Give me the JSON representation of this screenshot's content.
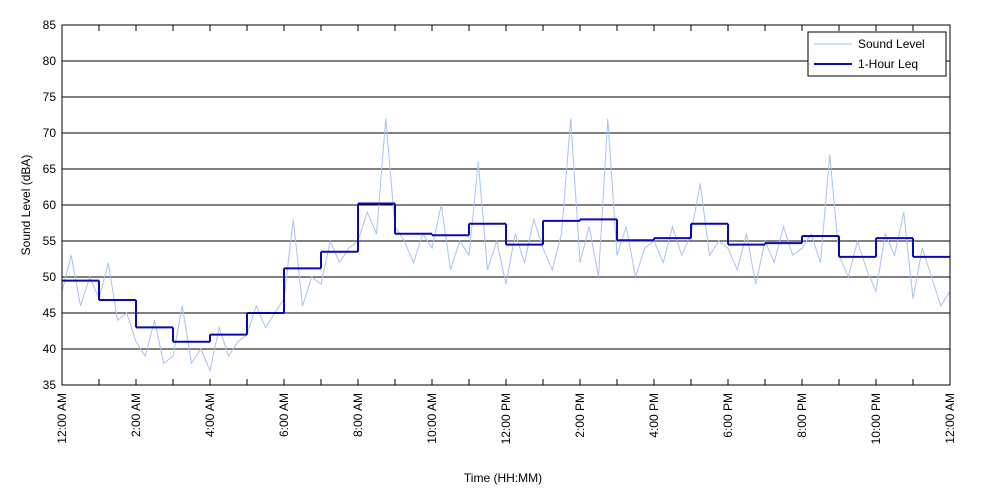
{
  "chart_data": {
    "type": "line",
    "xlabel": "Time (HH:MM)",
    "ylabel": "Sound Level (dBA)",
    "xlim": [
      0,
      24
    ],
    "xticks": [
      {
        "value": 0,
        "label": "12:00 AM"
      },
      {
        "value": 2,
        "label": "2:00 AM"
      },
      {
        "value": 4,
        "label": "4:00 AM"
      },
      {
        "value": 6,
        "label": "6:00 AM"
      },
      {
        "value": 8,
        "label": "8:00 AM"
      },
      {
        "value": 10,
        "label": "10:00 AM"
      },
      {
        "value": 12,
        "label": "12:00 PM"
      },
      {
        "value": 14,
        "label": "2:00 PM"
      },
      {
        "value": 16,
        "label": "4:00 PM"
      },
      {
        "value": 18,
        "label": "6:00 PM"
      },
      {
        "value": 20,
        "label": "8:00 PM"
      },
      {
        "value": 22,
        "label": "10:00 PM"
      },
      {
        "value": 24,
        "label": "12:00 AM"
      }
    ],
    "xminorticks": [
      1,
      3,
      5,
      7,
      9,
      11,
      13,
      15,
      17,
      19,
      21,
      23
    ],
    "ylim": [
      35,
      85
    ],
    "yticks": [
      35,
      40,
      45,
      50,
      55,
      60,
      65,
      70,
      75,
      80,
      85
    ],
    "grid": "y",
    "legend": "upper right",
    "series": [
      {
        "name": "Sound Level",
        "color": "#a9c2f2",
        "style": "line",
        "x": [
          0,
          0.25,
          0.5,
          0.75,
          1,
          1.25,
          1.5,
          1.75,
          2,
          2.25,
          2.5,
          2.75,
          3,
          3.25,
          3.5,
          3.75,
          4,
          4.25,
          4.5,
          4.75,
          5,
          5.25,
          5.5,
          5.75,
          6,
          6.25,
          6.5,
          6.75,
          7,
          7.25,
          7.5,
          7.75,
          8,
          8.25,
          8.5,
          8.75,
          9,
          9.25,
          9.5,
          9.75,
          10,
          10.25,
          10.5,
          10.75,
          11,
          11.25,
          11.5,
          11.75,
          12,
          12.25,
          12.5,
          12.75,
          13,
          13.25,
          13.5,
          13.75,
          14,
          14.25,
          14.5,
          14.75,
          15,
          15.25,
          15.5,
          15.75,
          16,
          16.25,
          16.5,
          16.75,
          17,
          17.25,
          17.5,
          17.75,
          18,
          18.25,
          18.5,
          18.75,
          19,
          19.25,
          19.5,
          19.75,
          20,
          20.25,
          20.5,
          20.75,
          21,
          21.25,
          21.5,
          21.75,
          22,
          22.25,
          22.5,
          22.75,
          23,
          23.25,
          23.5,
          23.75,
          24
        ],
        "values": [
          48,
          53,
          46,
          50,
          47,
          52,
          44,
          45,
          41,
          39,
          44,
          38,
          39,
          46,
          38,
          40,
          37,
          43,
          39,
          41,
          42,
          46,
          43,
          45,
          47,
          58,
          46,
          50,
          49,
          55,
          52,
          54,
          55,
          59,
          56,
          72,
          57,
          55,
          52,
          56,
          54,
          60,
          51,
          55,
          53,
          66,
          51,
          55,
          49,
          56,
          52,
          58,
          54,
          51,
          56,
          72,
          52,
          57,
          50,
          72,
          53,
          57,
          50,
          54,
          55,
          52,
          57,
          53,
          56,
          63,
          53,
          55,
          54,
          51,
          56,
          49,
          55,
          52,
          57,
          53,
          54,
          56,
          52,
          67,
          53,
          50,
          55,
          51,
          48,
          56,
          53,
          59,
          47,
          54,
          50,
          46,
          48
        ]
      },
      {
        "name": "1-Hour Leq",
        "color": "#0a0ab4",
        "style": "step",
        "x": [
          0,
          1,
          2,
          3,
          4,
          5,
          6,
          7,
          8,
          9,
          10,
          11,
          12,
          13,
          14,
          15,
          16,
          17,
          18,
          19,
          20,
          21,
          22,
          23
        ],
        "values": [
          49.5,
          46.8,
          43,
          41,
          42,
          45,
          51.2,
          53.5,
          60.2,
          56,
          55.8,
          57.4,
          54.5,
          57.8,
          58,
          55.1,
          55.4,
          57.4,
          54.5,
          54.7,
          55.7,
          52.8,
          55.4,
          52.8
        ]
      }
    ]
  }
}
